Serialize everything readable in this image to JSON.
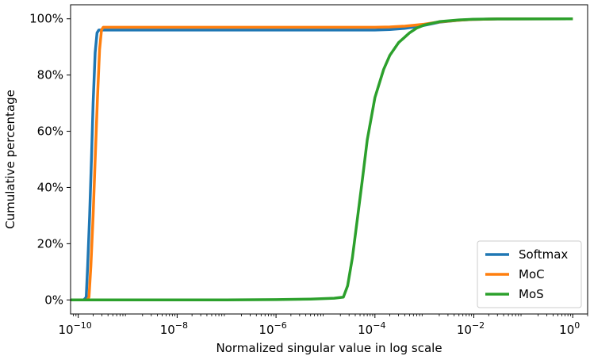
{
  "chart_data": {
    "type": "line",
    "title": "",
    "xlabel": "Normalized singular value in log scale",
    "ylabel": "Cumulative percentage",
    "x_scale": "log",
    "xlim": [
      7e-11,
      2.0
    ],
    "ylim": [
      -5,
      105
    ],
    "x_ticks": [
      {
        "value": 1e-10,
        "base": "10",
        "exp": "−10"
      },
      {
        "value": 1e-08,
        "base": "10",
        "exp": "−8"
      },
      {
        "value": 1e-06,
        "base": "10",
        "exp": "−6"
      },
      {
        "value": 0.0001,
        "base": "10",
        "exp": "−4"
      },
      {
        "value": 0.01,
        "base": "10",
        "exp": "−2"
      },
      {
        "value": 1,
        "base": "10",
        "exp": "0"
      }
    ],
    "y_ticks": [
      {
        "value": 0,
        "label": "0%"
      },
      {
        "value": 20,
        "label": "20%"
      },
      {
        "value": 40,
        "label": "40%"
      },
      {
        "value": 60,
        "label": "60%"
      },
      {
        "value": 80,
        "label": "80%"
      },
      {
        "value": 100,
        "label": "100%"
      }
    ],
    "grid": false,
    "legend_position": "lower-right",
    "series": [
      {
        "name": "Softmax",
        "color": "#1f77b4",
        "points": [
          [
            7e-11,
            0
          ],
          [
            1.3e-10,
            0
          ],
          [
            1.45e-10,
            1
          ],
          [
            1.55e-10,
            12
          ],
          [
            1.7e-10,
            30
          ],
          [
            1.85e-10,
            50
          ],
          [
            2e-10,
            70
          ],
          [
            2.2e-10,
            88
          ],
          [
            2.4e-10,
            95
          ],
          [
            2.6e-10,
            96
          ],
          [
            1e-09,
            96
          ],
          [
            1e-06,
            96
          ],
          [
            0.0001,
            96
          ],
          [
            0.0002,
            96.2
          ],
          [
            0.0004,
            96.6
          ],
          [
            0.0007,
            97.2
          ],
          [
            0.001,
            97.7
          ],
          [
            0.002,
            98.8
          ],
          [
            0.005,
            99.5
          ],
          [
            0.01,
            99.8
          ],
          [
            0.03,
            99.95
          ],
          [
            1,
            100
          ]
        ]
      },
      {
        "name": "MoC",
        "color": "#ff7f0e",
        "points": [
          [
            7e-11,
            0
          ],
          [
            1.5e-10,
            0
          ],
          [
            1.65e-10,
            1
          ],
          [
            1.8e-10,
            12
          ],
          [
            2e-10,
            30
          ],
          [
            2.2e-10,
            50
          ],
          [
            2.45e-10,
            72
          ],
          [
            2.7e-10,
            89
          ],
          [
            2.95e-10,
            96
          ],
          [
            3.2e-10,
            97
          ],
          [
            1e-09,
            97
          ],
          [
            1e-06,
            97
          ],
          [
            0.0001,
            97
          ],
          [
            0.0002,
            97.1
          ],
          [
            0.0004,
            97.4
          ],
          [
            0.0007,
            97.8
          ],
          [
            0.001,
            98.1
          ],
          [
            0.002,
            98.9
          ],
          [
            0.005,
            99.5
          ],
          [
            0.01,
            99.8
          ],
          [
            0.03,
            99.95
          ],
          [
            1,
            100
          ]
        ]
      },
      {
        "name": "MoS",
        "color": "#2ca02c",
        "points": [
          [
            7e-11,
            0
          ],
          [
            1e-07,
            0
          ],
          [
            1e-06,
            0.1
          ],
          [
            5e-06,
            0.3
          ],
          [
            1.5e-05,
            0.6
          ],
          [
            2.3e-05,
            1
          ],
          [
            2.8e-05,
            5
          ],
          [
            3.5e-05,
            15
          ],
          [
            4.5e-05,
            30
          ],
          [
            5.5e-05,
            42
          ],
          [
            7e-05,
            57
          ],
          [
            0.0001,
            72
          ],
          [
            0.00015,
            82
          ],
          [
            0.0002,
            87
          ],
          [
            0.0003,
            91.5
          ],
          [
            0.0005,
            95
          ],
          [
            0.0007,
            96.7
          ],
          [
            0.001,
            97.8
          ],
          [
            0.002,
            99
          ],
          [
            0.005,
            99.6
          ],
          [
            0.01,
            99.85
          ],
          [
            0.03,
            99.95
          ],
          [
            1,
            100
          ]
        ]
      }
    ]
  }
}
